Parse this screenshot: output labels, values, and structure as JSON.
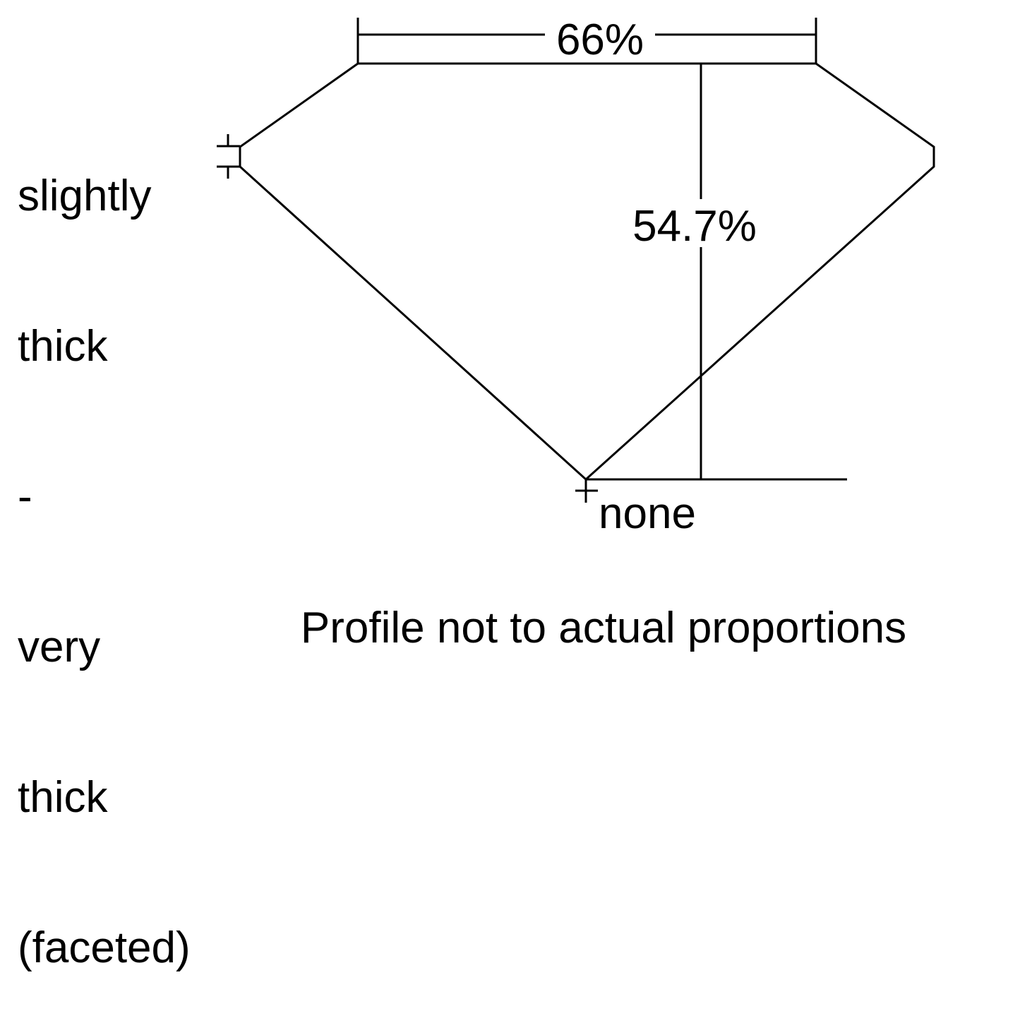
{
  "diagram": {
    "table_label": "66%",
    "depth_label": "54.7%",
    "girdle_label_lines": [
      "slightly",
      "thick",
      "-",
      "very",
      "thick",
      "(faceted)"
    ],
    "culet_label": "none",
    "caption": "Profile not to actual proportions",
    "line_color": "#000000",
    "background_color": "#ffffff"
  }
}
